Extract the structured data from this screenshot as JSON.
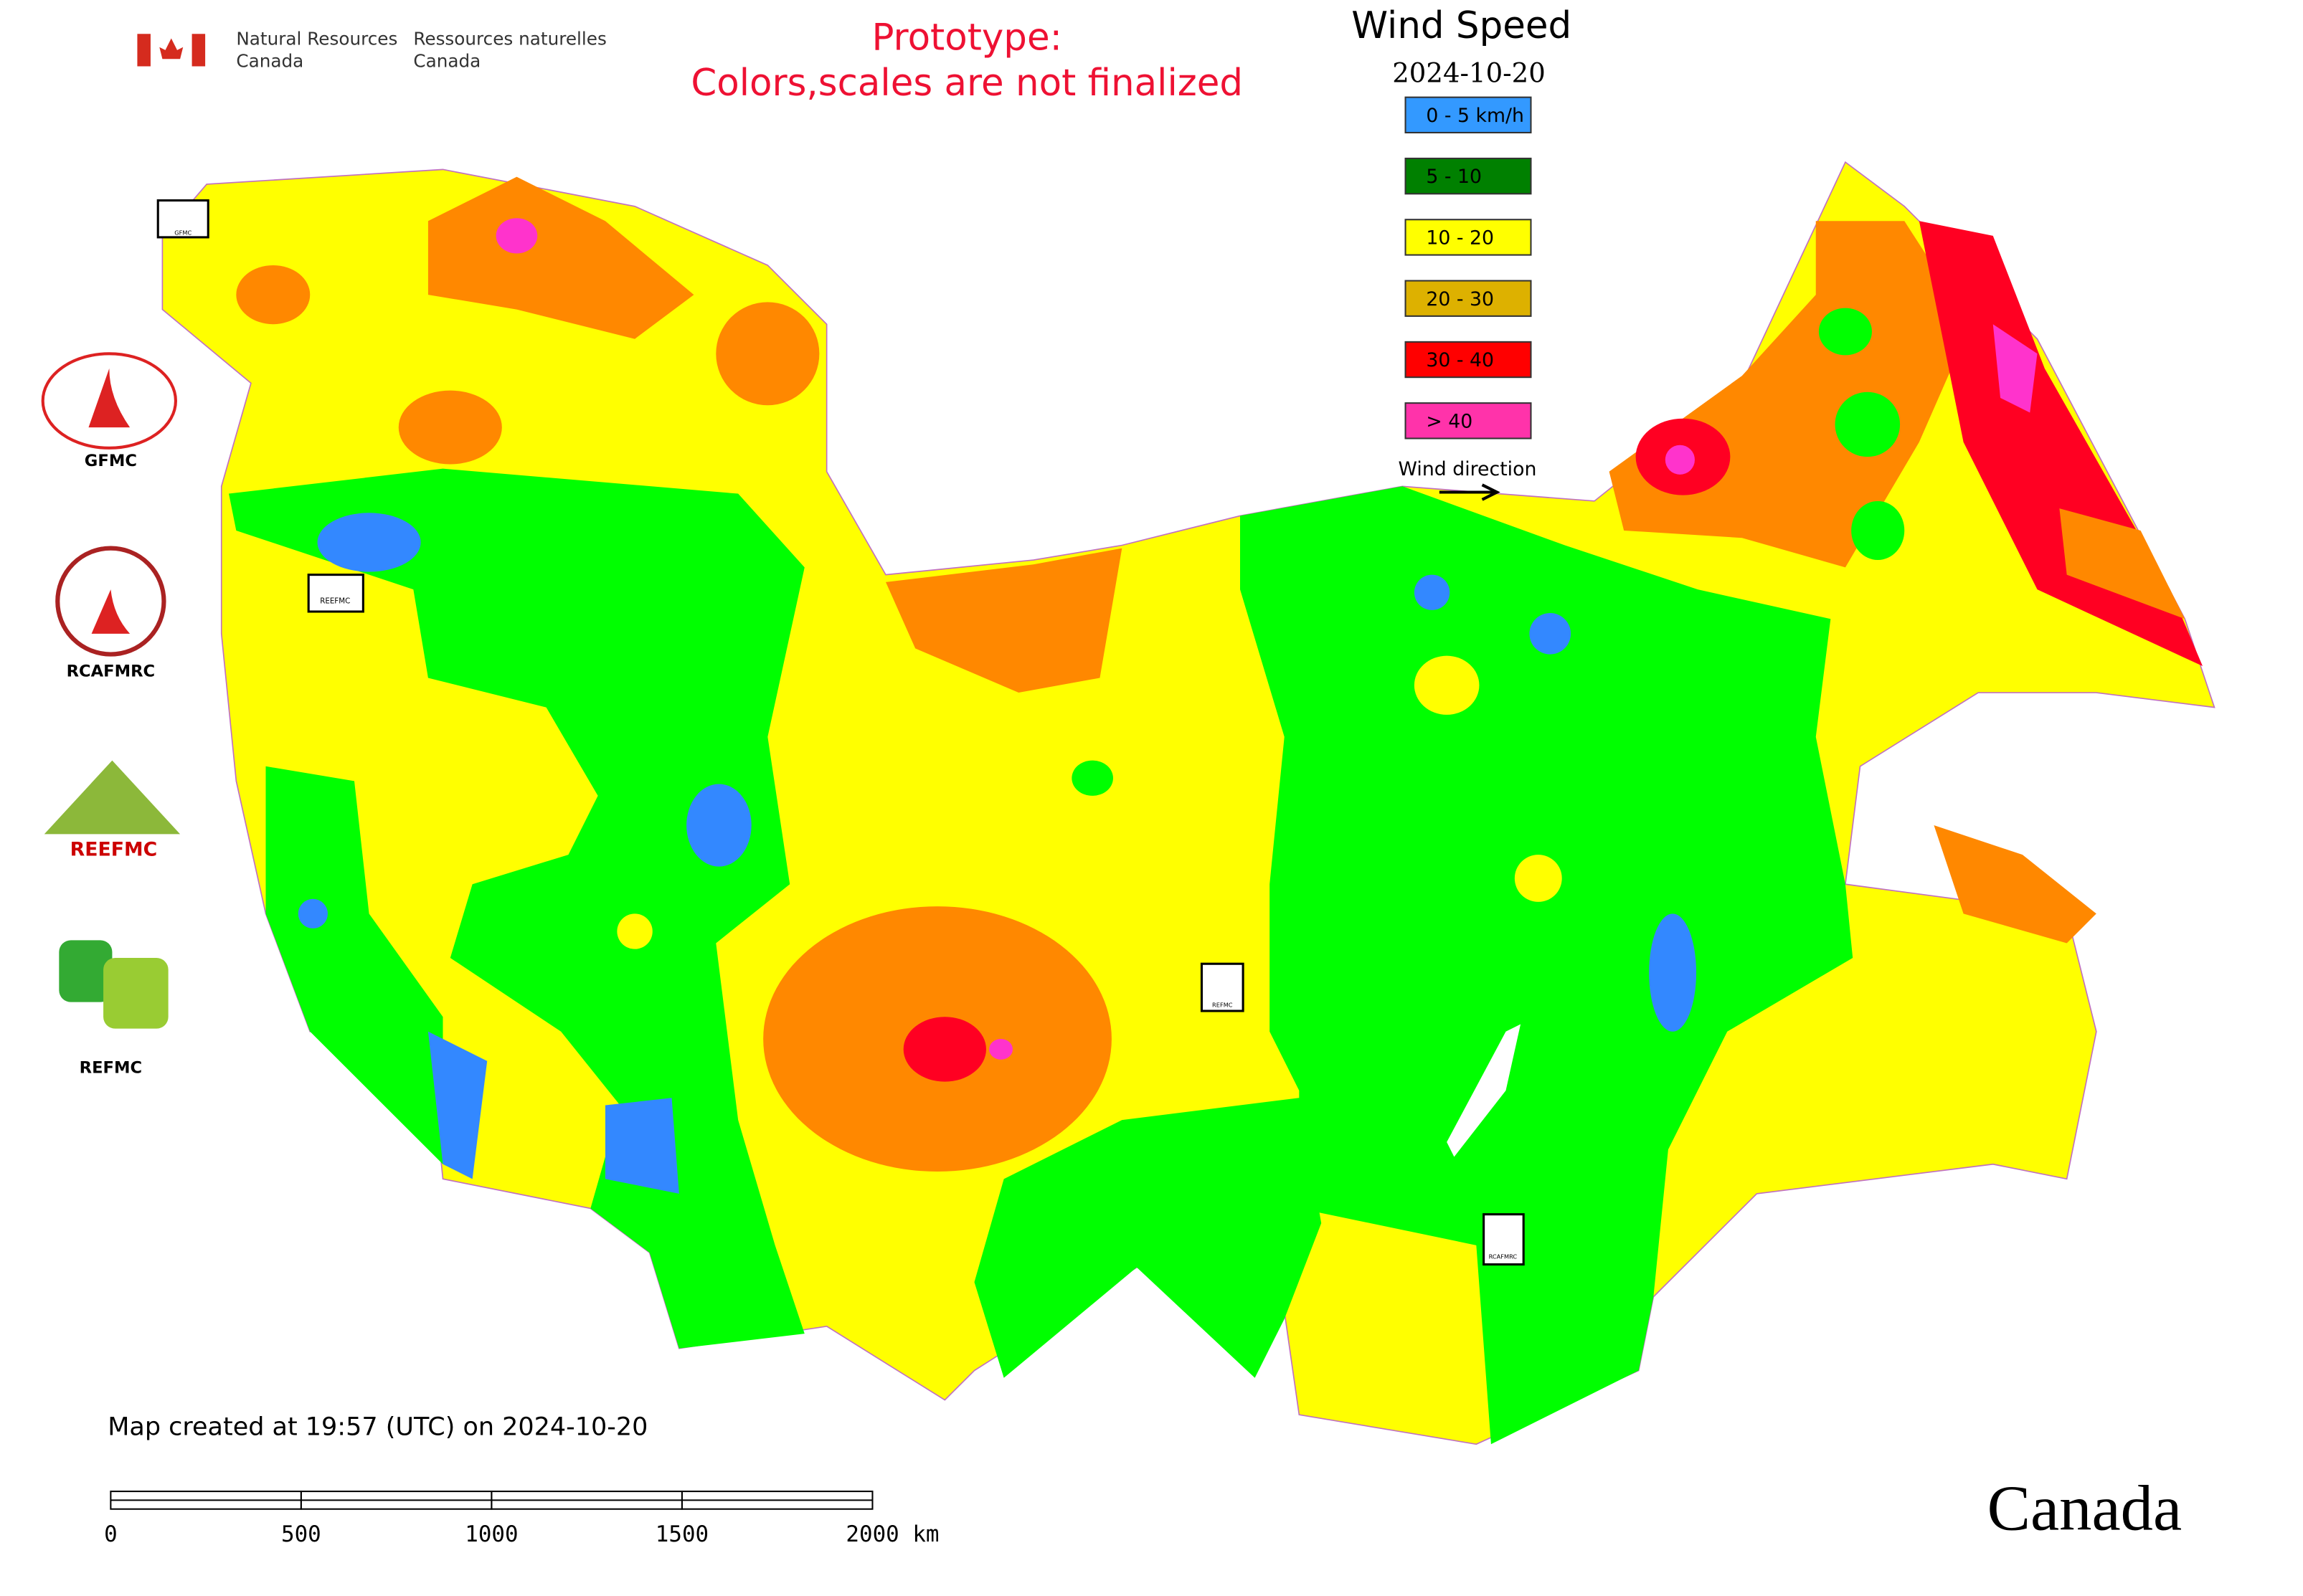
{
  "header": {
    "agency_en": [
      "Natural Resources",
      "Canada"
    ],
    "agency_fr": [
      "Ressources naturelles",
      "Canada"
    ],
    "notice": [
      "Prototype:",
      "Colors,scales are not finalized"
    ]
  },
  "legend": {
    "title": "Wind Speed",
    "date": "2024-10-20",
    "items": [
      {
        "label": "0 - 5 km/h",
        "color": "#3399ff"
      },
      {
        "label": "5 - 10",
        "color": "#008000"
      },
      {
        "label": "10 - 20",
        "color": "#ffff00"
      },
      {
        "label": "20 - 30",
        "color": "#ddb100"
      },
      {
        "label": "30 - 40",
        "color": "#ff0000"
      },
      {
        "label": "> 40",
        "color": "#ff33aa"
      }
    ],
    "direction_label": "Wind direction"
  },
  "logos": [
    "GFMC",
    "RCAFMRC",
    "REEFMC",
    "REFMC"
  ],
  "footer": {
    "created": "Map created at 19:57 (UTC) on 2024-10-20"
  },
  "scale_bar": {
    "labels": [
      "0",
      "500",
      "1000",
      "1500",
      "2000 km"
    ]
  },
  "wordmark": "Canada"
}
